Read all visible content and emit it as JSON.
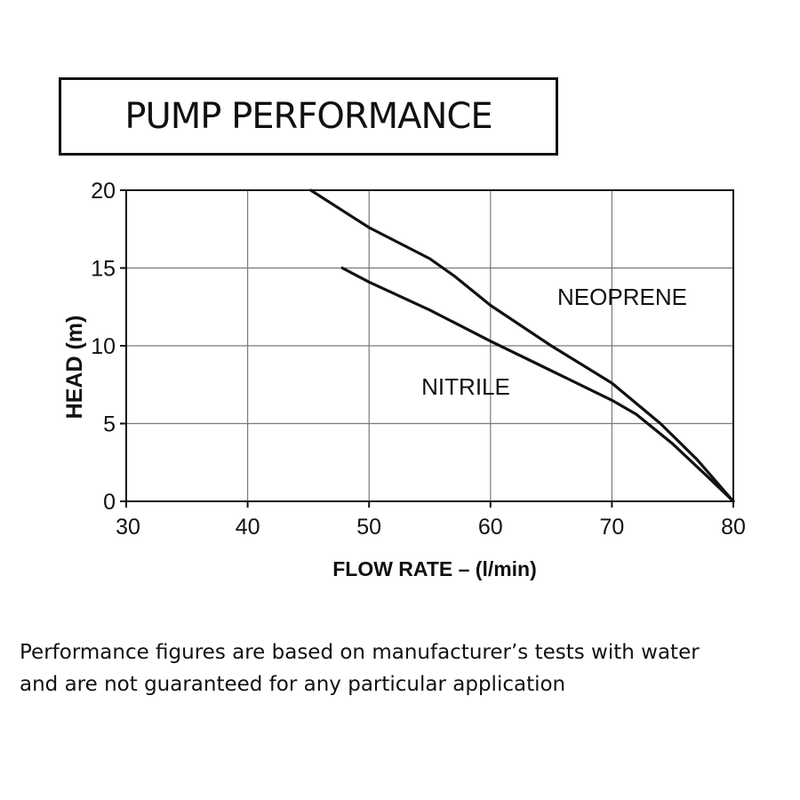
{
  "header": {
    "title": "PUMP PERFORMANCE"
  },
  "chart_data": {
    "type": "line",
    "title": "PUMP PERFORMANCE",
    "xlabel": "FLOW RATE – (l/min)",
    "ylabel": "HEAD (m)",
    "xlim": [
      30,
      80
    ],
    "ylim": [
      0,
      20
    ],
    "x_ticks": [
      30,
      40,
      50,
      60,
      70,
      80
    ],
    "y_ticks": [
      0,
      5,
      10,
      15,
      20
    ],
    "grid": true,
    "series": [
      {
        "name": "NEOPRENE",
        "points": [
          [
            45.2,
            20
          ],
          [
            50,
            17.6
          ],
          [
            55,
            15.6
          ],
          [
            57,
            14.5
          ],
          [
            60,
            12.6
          ],
          [
            65,
            10.0
          ],
          [
            70,
            7.6
          ],
          [
            74,
            5.0
          ],
          [
            77,
            2.7
          ],
          [
            80,
            0
          ]
        ]
      },
      {
        "name": "NITRILE",
        "points": [
          [
            47.8,
            15
          ],
          [
            50,
            14.1
          ],
          [
            55,
            12.3
          ],
          [
            60,
            10.3
          ],
          [
            65,
            8.4
          ],
          [
            70,
            6.5
          ],
          [
            72,
            5.6
          ],
          [
            75,
            3.7
          ],
          [
            78,
            1.5
          ],
          [
            80,
            0
          ]
        ]
      }
    ],
    "annotations": [
      "NEOPRENE",
      "NITRILE"
    ],
    "line_color": "#111111",
    "grid_color": "#7a7a7a"
  },
  "footnote": {
    "line1": "Performance figures are based on manufacturer’s tests with water",
    "line2": "and are not guaranteed for any particular application"
  }
}
